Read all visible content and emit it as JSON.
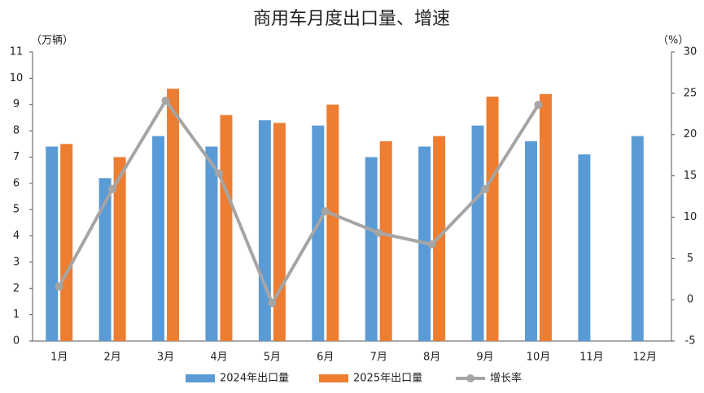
{
  "chart_data": {
    "type": "bar-line",
    "title": "商用车月度出口量、增速",
    "y_label": "（万辆）",
    "y2_label": "（%）",
    "categories": [
      "1月",
      "2月",
      "3月",
      "4月",
      "5月",
      "6月",
      "7月",
      "8月",
      "9月",
      "10月",
      "11月",
      "12月"
    ],
    "series": [
      {
        "name": "2024年出口量",
        "type": "bar",
        "color": "#5b9bd5",
        "values": [
          7.4,
          6.2,
          7.8,
          7.4,
          8.4,
          8.2,
          7.0,
          7.4,
          8.2,
          7.6,
          7.1,
          7.8
        ]
      },
      {
        "name": "2025年出口量",
        "type": "bar",
        "color": "#ed7d31",
        "values": [
          7.5,
          7.0,
          9.6,
          8.6,
          8.3,
          9.0,
          7.6,
          7.8,
          9.3,
          9.4,
          null,
          null
        ]
      },
      {
        "name": "增长率",
        "type": "line",
        "axis": "y2",
        "color": "#a5a5a5",
        "values": [
          1.6,
          13.4,
          24.1,
          15.3,
          -0.4,
          10.7,
          8.1,
          6.7,
          13.4,
          23.6,
          null,
          null
        ]
      }
    ],
    "ylim": [
      0,
      11
    ],
    "yticks": [
      0,
      1,
      2,
      3,
      4,
      5,
      6,
      7,
      8,
      9,
      10,
      11
    ],
    "y2lim": [
      -5,
      30
    ],
    "y2ticks": [
      -5,
      0,
      5,
      10,
      15,
      20,
      25,
      30
    ],
    "legend": "bottom"
  }
}
